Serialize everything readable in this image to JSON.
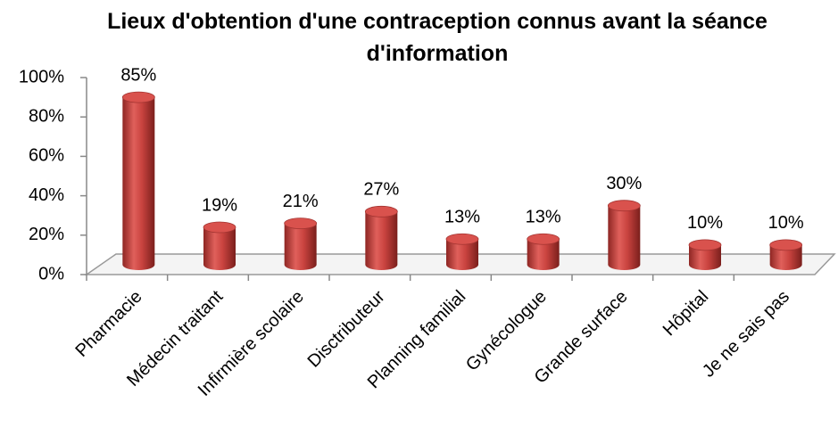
{
  "chart_data": {
    "type": "bar3d",
    "title": "Lieux d'obtention d'une contraception connus avant la séance d'information",
    "categories": [
      "Pharmacie",
      "Médecin traitant",
      "Infirmière scolaire",
      "Disctributeur",
      "Planning familial",
      "Gynécologue",
      "Grande surface",
      "Hôpital",
      "Je ne sais pas"
    ],
    "values": [
      85,
      19,
      21,
      27,
      13,
      13,
      30,
      10,
      10
    ],
    "value_labels": [
      "85%",
      "19%",
      "21%",
      "27%",
      "13%",
      "13%",
      "30%",
      "10%",
      "10%"
    ],
    "color": "#c0504d",
    "ylim": [
      0,
      100
    ],
    "yticks": [
      {
        "value": 0,
        "label": "0%"
      },
      {
        "value": 20,
        "label": "20%"
      },
      {
        "value": 40,
        "label": "40%"
      },
      {
        "value": 60,
        "label": "60%"
      },
      {
        "value": 80,
        "label": "80%"
      },
      {
        "value": 100,
        "label": "100%"
      }
    ],
    "grid": false
  }
}
